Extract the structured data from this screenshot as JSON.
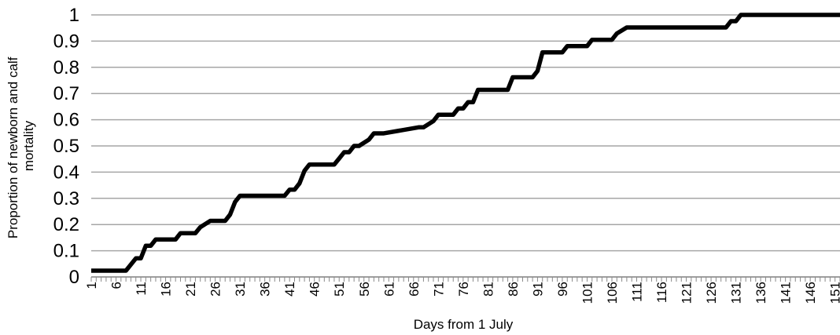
{
  "chart_data": {
    "type": "line",
    "xlabel": "Days from 1 July",
    "ylabel_lines": [
      "Proportion of newborn and calf",
      "mortality"
    ],
    "ylim": [
      0,
      1
    ],
    "xlim": [
      1,
      152
    ],
    "grid": true,
    "y_ticks": [
      "0",
      "0.1",
      "0.2",
      "0.3",
      "0.4",
      "0.5",
      "0.6",
      "0.7",
      "0.8",
      "0.9",
      "1"
    ],
    "x_ticks": [
      "1",
      "6",
      "11",
      "16",
      "21",
      "26",
      "31",
      "36",
      "41",
      "46",
      "51",
      "56",
      "61",
      "66",
      "71",
      "76",
      "81",
      "86",
      "91",
      "96",
      "101",
      "106",
      "111",
      "116",
      "121",
      "126",
      "131",
      "136",
      "141",
      "146",
      "151"
    ],
    "line_color": "#000000",
    "series": [
      {
        "x": [
          1,
          8,
          10,
          11,
          12,
          13,
          14,
          18,
          19,
          22,
          23,
          25,
          28,
          29,
          30,
          31,
          40,
          41,
          42,
          43,
          44,
          45,
          50,
          51,
          52,
          53,
          54,
          55,
          57,
          58,
          60,
          67,
          68,
          70,
          71,
          74,
          75,
          76,
          77,
          78,
          79,
          85,
          86,
          90,
          91,
          92,
          96,
          97,
          101,
          102,
          106,
          107,
          109,
          129,
          130,
          131,
          132,
          152
        ],
        "y": [
          0.024,
          0.024,
          0.071,
          0.071,
          0.119,
          0.119,
          0.143,
          0.143,
          0.167,
          0.167,
          0.19,
          0.214,
          0.214,
          0.238,
          0.286,
          0.31,
          0.31,
          0.333,
          0.333,
          0.357,
          0.405,
          0.429,
          0.429,
          0.452,
          0.476,
          0.476,
          0.5,
          0.5,
          0.524,
          0.548,
          0.548,
          0.571,
          0.571,
          0.595,
          0.619,
          0.619,
          0.643,
          0.643,
          0.667,
          0.667,
          0.714,
          0.714,
          0.762,
          0.762,
          0.786,
          0.857,
          0.857,
          0.881,
          0.881,
          0.905,
          0.905,
          0.929,
          0.952,
          0.952,
          0.976,
          0.976,
          1.0,
          1.0
        ]
      }
    ]
  }
}
